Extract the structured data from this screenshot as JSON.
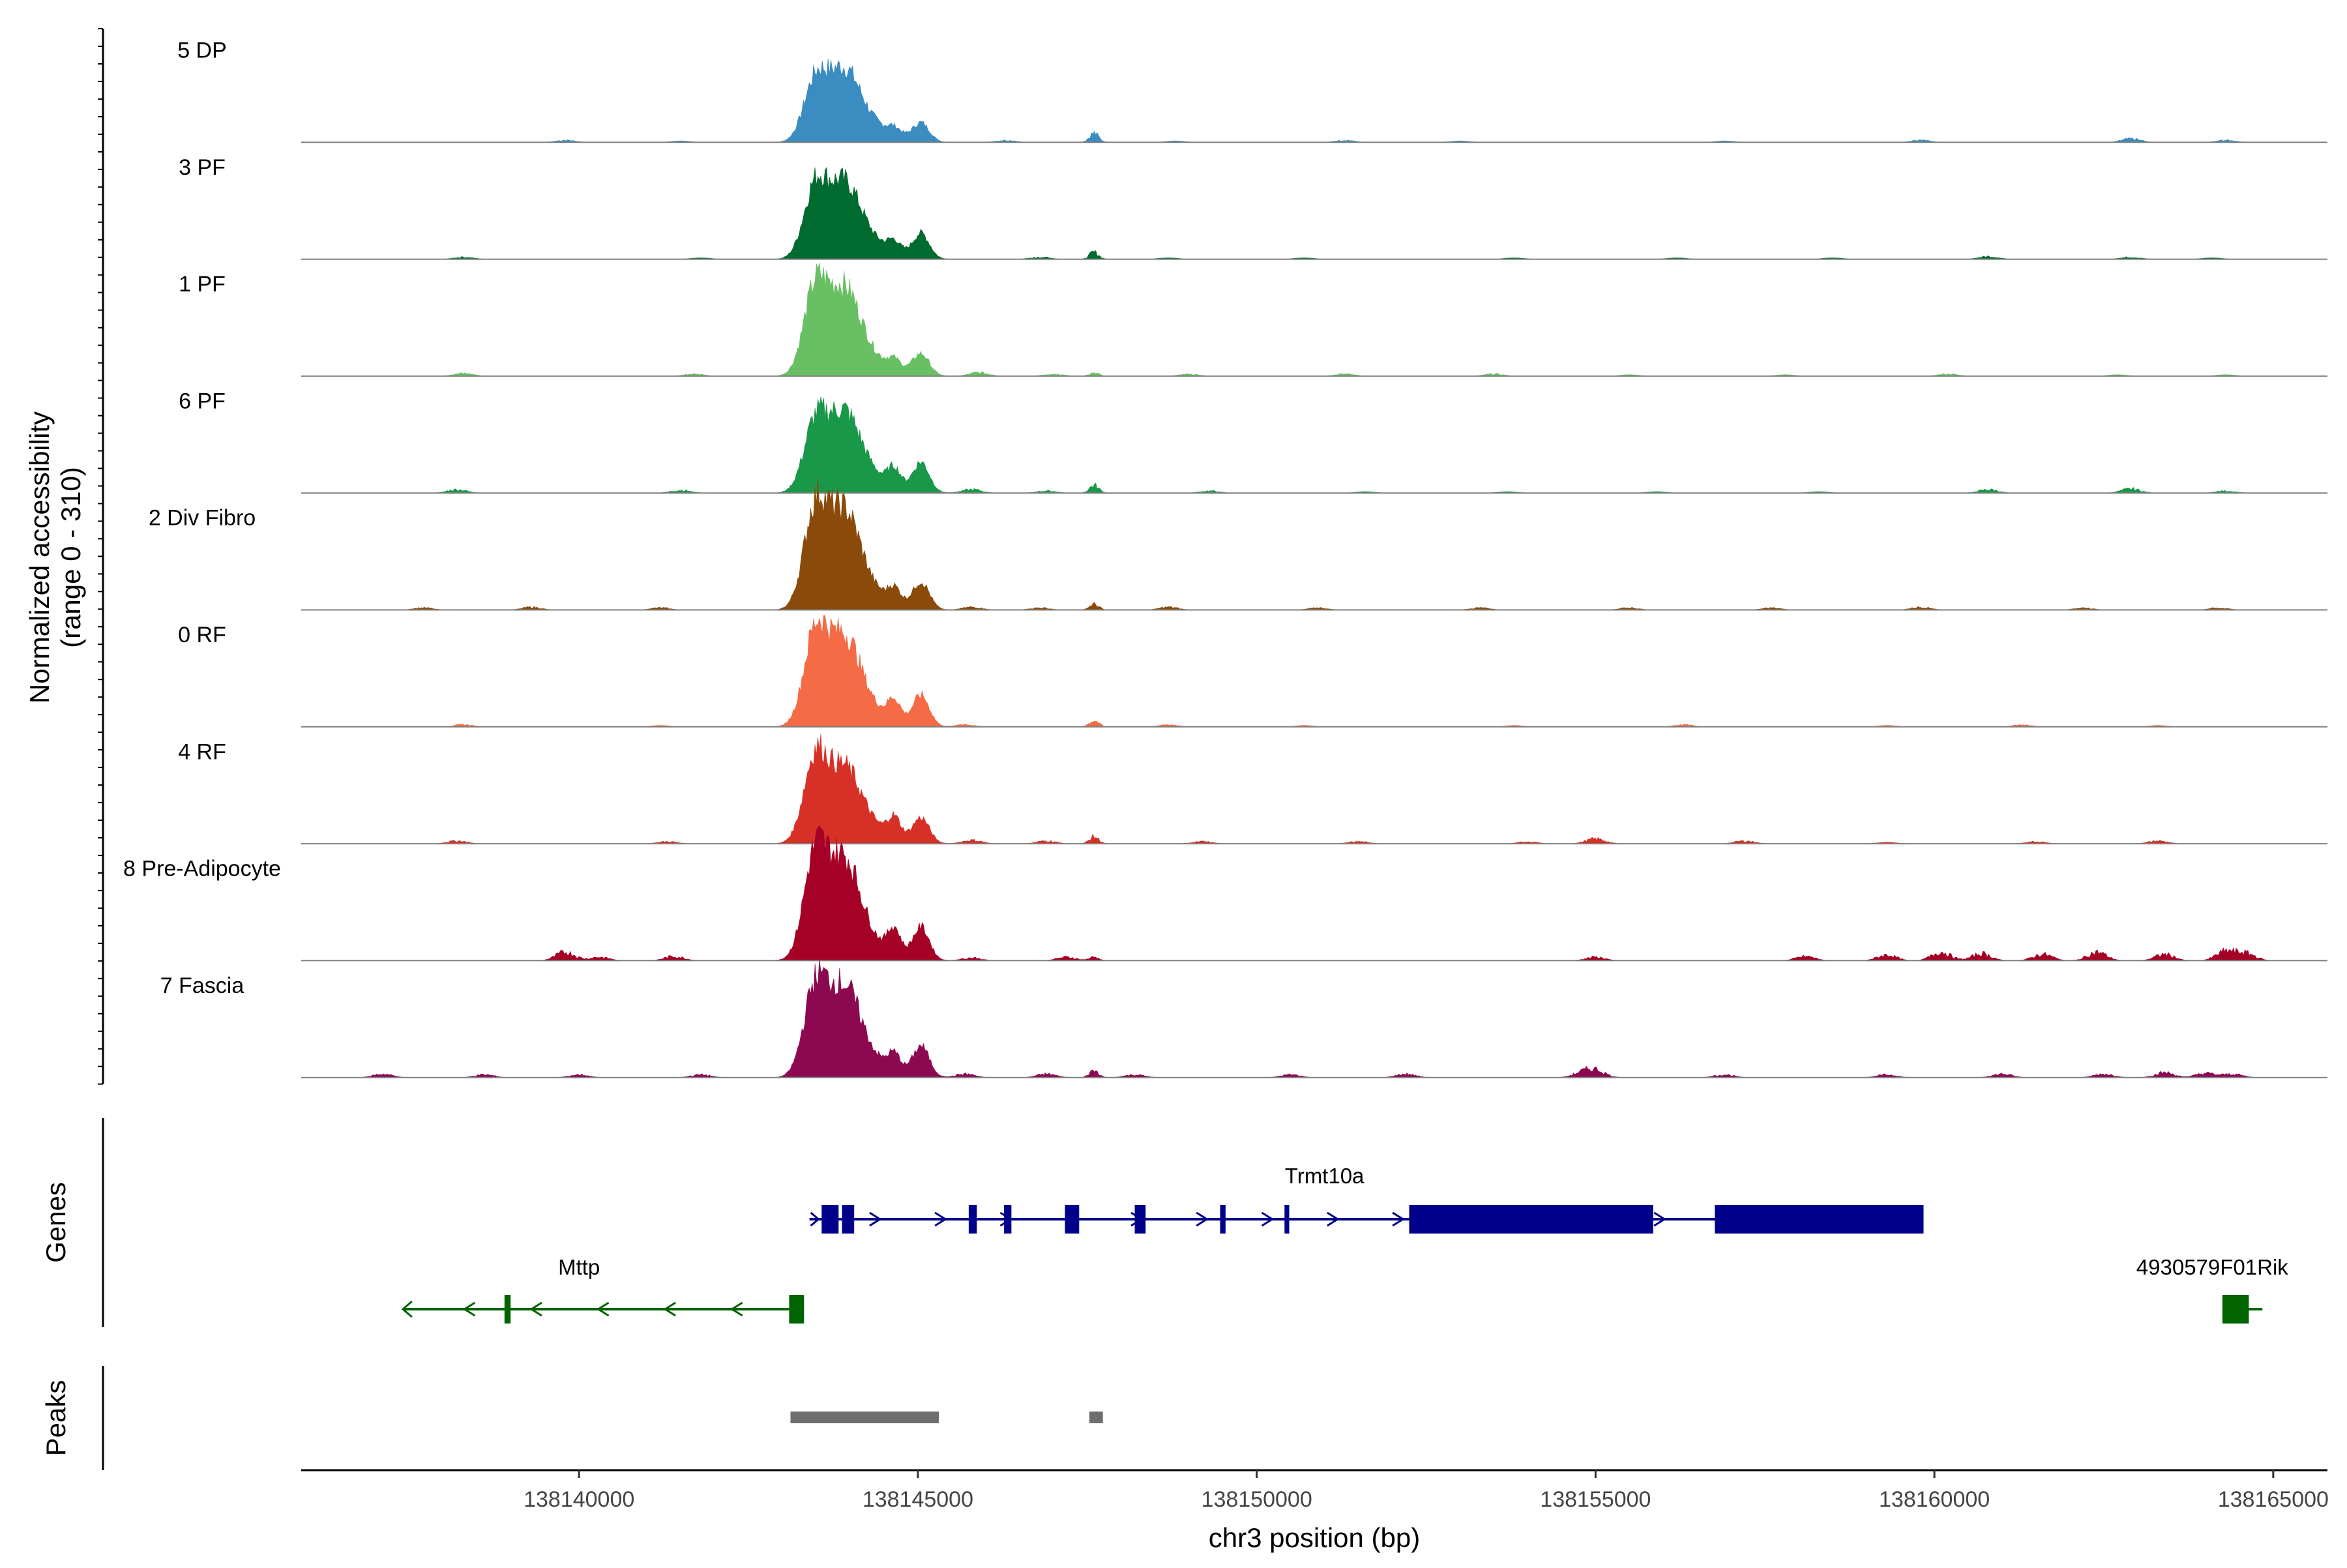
{
  "chart_data": {
    "type": "area",
    "title": "",
    "chromosome": "chr3",
    "xlabel": "chr3 position (bp)",
    "ylabel_line1": "Normalized accessibility",
    "ylabel_line2": "(range 0 - 310)",
    "y_range": [
      0,
      310
    ],
    "x_range": [
      138135900,
      138165800
    ],
    "x_ticks": [
      138140000,
      138145000,
      138150000,
      138155000,
      138160000,
      138165000
    ],
    "x_tick_labels": [
      "138140000",
      "138145000",
      "138150000",
      "138155000",
      "138160000",
      "138165000"
    ],
    "peak_positions": [
      138143480,
      138143900,
      138144650,
      138145050,
      138147600
    ],
    "track_labels": {
      "genes": "Genes",
      "peaks": "Peaks"
    },
    "series": [
      {
        "name": "5 DP",
        "color": "#3a8cc1",
        "peaks": [
          0.78,
          0.92,
          0.09,
          0.25,
          0.13
        ],
        "minor": [
          [
            138139800,
            0.03
          ],
          [
            138141500,
            0.02
          ],
          [
            138146300,
            0.03
          ],
          [
            138148800,
            0.02
          ],
          [
            138151300,
            0.03
          ],
          [
            138153000,
            0.02
          ],
          [
            138156900,
            0.02
          ],
          [
            138159800,
            0.03
          ],
          [
            138162900,
            0.05
          ],
          [
            138164300,
            0.03
          ]
        ]
      },
      {
        "name": "3 PF",
        "color": "#006b2e",
        "peaks": [
          0.93,
          0.97,
          0.14,
          0.34,
          0.1
        ],
        "minor": [
          [
            138138300,
            0.03
          ],
          [
            138141800,
            0.02
          ],
          [
            138146800,
            0.03
          ],
          [
            138148700,
            0.02
          ],
          [
            138150700,
            0.02
          ],
          [
            138153800,
            0.02
          ],
          [
            138156200,
            0.02
          ],
          [
            138158500,
            0.02
          ],
          [
            138160800,
            0.04
          ],
          [
            138162900,
            0.03
          ],
          [
            138164100,
            0.02
          ]
        ]
      },
      {
        "name": "1 PF",
        "color": "#69bf63",
        "peaks": [
          1.12,
          1.13,
          0.12,
          0.29,
          0.05
        ],
        "minor": [
          [
            138138300,
            0.04
          ],
          [
            138141700,
            0.03
          ],
          [
            138145900,
            0.05
          ],
          [
            138147000,
            0.03
          ],
          [
            138149000,
            0.03
          ],
          [
            138151300,
            0.03
          ],
          [
            138153500,
            0.03
          ],
          [
            138155500,
            0.02
          ],
          [
            138157800,
            0.02
          ],
          [
            138160200,
            0.03
          ],
          [
            138162700,
            0.02
          ],
          [
            138164300,
            0.02
          ]
        ]
      },
      {
        "name": "6 PF",
        "color": "#1a9849",
        "peaks": [
          0.88,
          1.03,
          0.24,
          0.41,
          0.11
        ],
        "minor": [
          [
            138138200,
            0.05
          ],
          [
            138141500,
            0.04
          ],
          [
            138145800,
            0.05
          ],
          [
            138146900,
            0.03
          ],
          [
            138149300,
            0.03
          ],
          [
            138151600,
            0.02
          ],
          [
            138153700,
            0.02
          ],
          [
            138155900,
            0.02
          ],
          [
            138158300,
            0.02
          ],
          [
            138160800,
            0.05
          ],
          [
            138162900,
            0.06
          ],
          [
            138164300,
            0.03
          ]
        ]
      },
      {
        "name": "2 Div Fibro",
        "color": "#8a4a0a",
        "peaks": [
          1.3,
          1.29,
          0.2,
          0.37,
          0.08
        ],
        "minor": [
          [
            138137700,
            0.03
          ],
          [
            138139300,
            0.04
          ],
          [
            138141200,
            0.03
          ],
          [
            138145800,
            0.04
          ],
          [
            138146800,
            0.03
          ],
          [
            138148700,
            0.04
          ],
          [
            138150900,
            0.03
          ],
          [
            138153300,
            0.03
          ],
          [
            138155500,
            0.03
          ],
          [
            138157600,
            0.03
          ],
          [
            138159800,
            0.04
          ],
          [
            138162200,
            0.03
          ],
          [
            138164200,
            0.03
          ]
        ]
      },
      {
        "name": "0 RF",
        "color": "#f46b45",
        "peaks": [
          1.21,
          1.17,
          0.27,
          0.42,
          0.09
        ],
        "minor": [
          [
            138138300,
            0.03
          ],
          [
            138141200,
            0.02
          ],
          [
            138145700,
            0.03
          ],
          [
            138148700,
            0.03
          ],
          [
            138150700,
            0.02
          ],
          [
            138153800,
            0.02
          ],
          [
            138156300,
            0.03
          ],
          [
            138159300,
            0.02
          ],
          [
            138161300,
            0.03
          ],
          [
            138163300,
            0.02
          ]
        ]
      },
      {
        "name": "4 RF",
        "color": "#d73027",
        "peaks": [
          1.12,
          0.96,
          0.26,
          0.34,
          0.1
        ],
        "minor": [
          [
            138138200,
            0.04
          ],
          [
            138141300,
            0.03
          ],
          [
            138145800,
            0.05
          ],
          [
            138146900,
            0.04
          ],
          [
            138149200,
            0.03
          ],
          [
            138151500,
            0.03
          ],
          [
            138154000,
            0.03
          ],
          [
            138155000,
            0.07
          ],
          [
            138157200,
            0.04
          ],
          [
            138159300,
            0.02
          ],
          [
            138161500,
            0.03
          ],
          [
            138163300,
            0.04
          ]
        ]
      },
      {
        "name": "8 Pre-Adipocyte",
        "color": "#a50026",
        "peaks": [
          1.36,
          1.33,
          0.34,
          0.45,
          0.05
        ],
        "minor": [
          [
            138139800,
            0.12
          ],
          [
            138140300,
            0.05
          ],
          [
            138141400,
            0.06
          ],
          [
            138145800,
            0.04
          ],
          [
            138147200,
            0.05
          ],
          [
            138155000,
            0.05
          ],
          [
            138158100,
            0.06
          ],
          [
            138159300,
            0.08
          ],
          [
            138160100,
            0.12
          ],
          [
            138160700,
            0.1
          ],
          [
            138161600,
            0.09
          ],
          [
            138162400,
            0.12
          ],
          [
            138163400,
            0.09
          ],
          [
            138164300,
            0.13
          ],
          [
            138164600,
            0.1
          ]
        ]
      },
      {
        "name": "7 Fascia",
        "color": "#8c0850",
        "peaks": [
          1.15,
          1.18,
          0.22,
          0.42,
          0.1
        ],
        "minor": [
          [
            138137100,
            0.05
          ],
          [
            138138600,
            0.04
          ],
          [
            138140000,
            0.04
          ],
          [
            138141800,
            0.04
          ],
          [
            138145700,
            0.05
          ],
          [
            138146900,
            0.05
          ],
          [
            138148200,
            0.04
          ],
          [
            138150500,
            0.04
          ],
          [
            138152200,
            0.05
          ],
          [
            138154800,
            0.06
          ],
          [
            138155000,
            0.1
          ],
          [
            138156900,
            0.04
          ],
          [
            138159300,
            0.04
          ],
          [
            138161000,
            0.05
          ],
          [
            138162500,
            0.05
          ],
          [
            138163400,
            0.07
          ],
          [
            138164000,
            0.06
          ],
          [
            138164400,
            0.05
          ]
        ]
      }
    ],
    "genes": [
      {
        "name": "Trmt10a",
        "strand": "+",
        "color": "#00008b",
        "start": 138143400,
        "end": 138159800,
        "exons": [
          [
            138143580,
            138143830
          ],
          [
            138143880,
            138144060
          ],
          [
            138145750,
            138145870
          ],
          [
            138146270,
            138146380
          ],
          [
            138147170,
            138147380
          ],
          [
            138148200,
            138148360
          ],
          [
            138149460,
            138149540
          ],
          [
            138150410,
            138150480
          ],
          [
            138152250,
            138155850
          ],
          [
            138156760,
            138159840
          ]
        ]
      },
      {
        "name": "Mttp",
        "strand": "-",
        "color": "#006400",
        "start": 138137400,
        "end": 138143320,
        "exons": [
          [
            138138900,
            138138990
          ],
          [
            138143100,
            138143320
          ]
        ]
      },
      {
        "name": "4930579F01Rik",
        "strand": "+",
        "color": "#006400",
        "start": 138164250,
        "end": 138164840,
        "exons": [
          [
            138164250,
            138164640
          ]
        ]
      }
    ],
    "peak_regions": [
      [
        138143120,
        138145310
      ],
      [
        138147530,
        138147730
      ]
    ]
  }
}
